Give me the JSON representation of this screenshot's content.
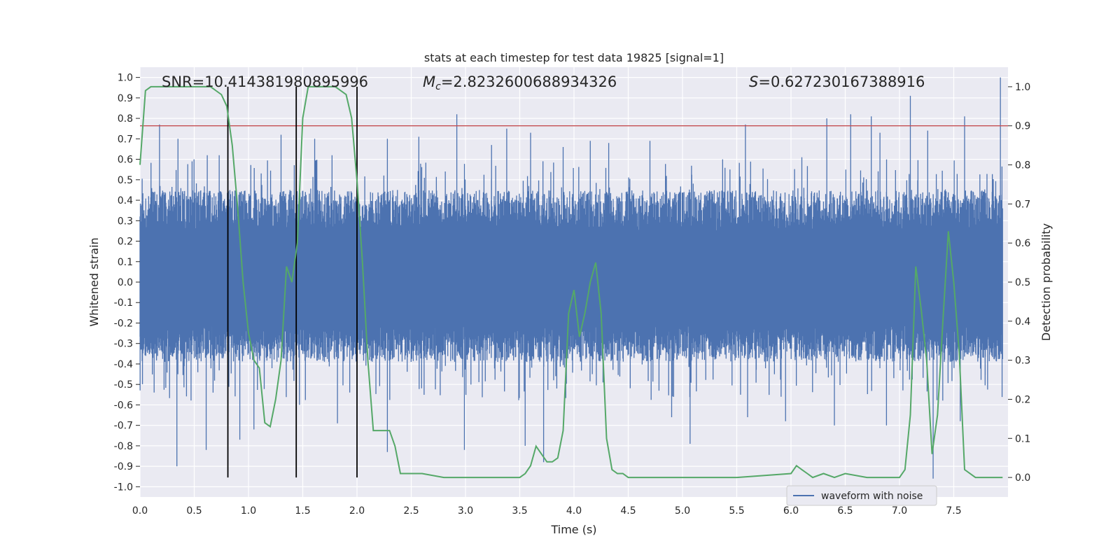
{
  "chart_data": {
    "type": "line",
    "title": "stats at each timestep for test data 19825 [signal=1]",
    "xlabel": "Time (s)",
    "ylabel": "Whitened strain",
    "ylabel_right": "Detection probability",
    "xlim": [
      0.0,
      8.0
    ],
    "ylim": [
      -1.05,
      1.05
    ],
    "ylim_right": [
      -0.05,
      1.05
    ],
    "x_ticks": [
      "0.0",
      "0.5",
      "1.0",
      "1.5",
      "2.0",
      "2.5",
      "3.0",
      "3.5",
      "4.0",
      "4.5",
      "5.0",
      "5.5",
      "6.0",
      "6.5",
      "7.0",
      "7.5"
    ],
    "y_ticks": [
      "1.0",
      "0.9",
      "0.8",
      "0.7",
      "0.6",
      "0.5",
      "0.4",
      "0.3",
      "0.2",
      "0.1",
      "0.0",
      "-0.1",
      "-0.2",
      "-0.3",
      "-0.4",
      "-0.5",
      "-0.6",
      "-0.7",
      "-0.8",
      "-0.9",
      "-1.0"
    ],
    "y_ticks_right": [
      "1.0",
      "0.9",
      "0.8",
      "0.7",
      "0.6",
      "0.5",
      "0.4",
      "0.3",
      "0.2",
      "0.1",
      "0.0"
    ],
    "grid": true,
    "legend_position": "lower-right",
    "annotations": {
      "snr": "SNR=10.414381980895996",
      "mc_symbol": "M",
      "mc_sub": "c",
      "mc_value": "=2.8232600688934326",
      "s_symbol": "S",
      "s_value": "=0.627230167388916"
    },
    "threshold": 0.9,
    "threshold_color": "#c44e52",
    "vertical_lines_x": [
      0.81,
      1.44,
      2.0
    ],
    "series": [
      {
        "name": "waveform with noise",
        "color": "#4c72b0",
        "kind": "noise-waveform",
        "t_range": [
          0.0,
          7.95
        ],
        "core_band": [
          -0.39,
          0.45
        ],
        "spikes": [
          [
            0.18,
            0.77
          ],
          [
            0.35,
            0.7
          ],
          [
            0.48,
            0.59
          ],
          [
            0.62,
            0.62
          ],
          [
            0.73,
            0.62
          ],
          [
            1.3,
            0.72
          ],
          [
            1.44,
            0.94
          ],
          [
            1.61,
            0.7
          ],
          [
            1.77,
            0.62
          ],
          [
            2.28,
            0.7
          ],
          [
            2.57,
            0.71
          ],
          [
            2.92,
            0.82
          ],
          [
            3.24,
            0.67
          ],
          [
            3.38,
            0.75
          ],
          [
            3.6,
            0.73
          ],
          [
            3.9,
            0.66
          ],
          [
            4.15,
            0.69
          ],
          [
            4.32,
            0.68
          ],
          [
            4.7,
            0.69
          ],
          [
            5.37,
            0.6
          ],
          [
            5.58,
            0.77
          ],
          [
            6.1,
            0.61
          ],
          [
            6.33,
            0.8
          ],
          [
            6.55,
            0.82
          ],
          [
            6.74,
            0.81
          ],
          [
            6.82,
            0.73
          ],
          [
            7.1,
            0.91
          ],
          [
            7.26,
            0.74
          ],
          [
            7.6,
            0.81
          ],
          [
            7.93,
            1.0
          ],
          [
            0.34,
            -0.9
          ],
          [
            0.61,
            -0.82
          ],
          [
            0.92,
            -0.77
          ],
          [
            1.05,
            -0.72
          ],
          [
            1.47,
            -0.6
          ],
          [
            1.82,
            -0.69
          ],
          [
            2.28,
            -0.83
          ],
          [
            2.99,
            -0.82
          ],
          [
            3.55,
            -0.8
          ],
          [
            3.72,
            -0.88
          ],
          [
            4.9,
            -0.66
          ],
          [
            5.07,
            -0.79
          ],
          [
            5.6,
            -0.66
          ],
          [
            5.95,
            -0.68
          ],
          [
            6.4,
            -0.7
          ],
          [
            6.88,
            -0.7
          ],
          [
            7.31,
            -0.96
          ],
          [
            7.56,
            -0.68
          ]
        ]
      },
      {
        "name": "",
        "color": "#55a868",
        "axis": "right",
        "x": [
          0.0,
          0.05,
          0.1,
          0.2,
          0.3,
          0.4,
          0.5,
          0.6,
          0.65,
          0.7,
          0.75,
          0.8,
          0.85,
          0.9,
          0.95,
          1.0,
          1.05,
          1.1,
          1.15,
          1.2,
          1.25,
          1.3,
          1.35,
          1.4,
          1.45,
          1.5,
          1.55,
          1.6,
          1.7,
          1.8,
          1.9,
          1.95,
          2.0,
          2.05,
          2.1,
          2.15,
          2.2,
          2.25,
          2.3,
          2.35,
          2.4,
          2.5,
          2.6,
          2.8,
          3.0,
          3.2,
          3.4,
          3.5,
          3.55,
          3.6,
          3.65,
          3.7,
          3.75,
          3.8,
          3.85,
          3.9,
          3.95,
          4.0,
          4.05,
          4.1,
          4.15,
          4.2,
          4.25,
          4.3,
          4.35,
          4.4,
          4.45,
          4.5,
          4.6,
          5.0,
          5.5,
          6.0,
          6.05,
          6.1,
          6.15,
          6.2,
          6.3,
          6.4,
          6.5,
          6.7,
          7.0,
          7.05,
          7.1,
          7.15,
          7.2,
          7.25,
          7.3,
          7.35,
          7.4,
          7.45,
          7.5,
          7.55,
          7.6,
          7.7,
          7.8,
          7.95
        ],
        "y": [
          0.8,
          0.99,
          1.0,
          1.0,
          1.0,
          1.0,
          1.0,
          1.0,
          1.0,
          0.99,
          0.98,
          0.95,
          0.85,
          0.69,
          0.5,
          0.37,
          0.3,
          0.28,
          0.14,
          0.13,
          0.2,
          0.3,
          0.54,
          0.5,
          0.6,
          0.92,
          1.0,
          1.0,
          1.0,
          1.0,
          0.98,
          0.92,
          0.76,
          0.55,
          0.3,
          0.12,
          0.12,
          0.12,
          0.12,
          0.08,
          0.01,
          0.01,
          0.01,
          0.0,
          0.0,
          0.0,
          0.0,
          0.0,
          0.01,
          0.03,
          0.08,
          0.06,
          0.04,
          0.04,
          0.05,
          0.12,
          0.42,
          0.48,
          0.36,
          0.42,
          0.5,
          0.55,
          0.42,
          0.1,
          0.02,
          0.01,
          0.01,
          0.0,
          0.0,
          0.0,
          0.0,
          0.01,
          0.03,
          0.02,
          0.01,
          0.0,
          0.01,
          0.0,
          0.01,
          0.0,
          0.0,
          0.02,
          0.16,
          0.54,
          0.43,
          0.3,
          0.06,
          0.16,
          0.4,
          0.63,
          0.5,
          0.32,
          0.02,
          0.0,
          0.0,
          0.0
        ]
      }
    ]
  }
}
